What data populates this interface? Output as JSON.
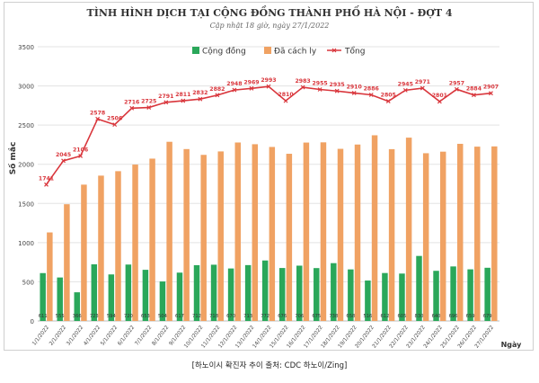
{
  "header": {
    "title": "TÌNH HÌNH DỊCH TẠI CỘNG ĐỒNG THÀNH PHỐ HÀ NỘI - ĐỢT 4",
    "subtitle": "Cập nhật 18 giờ, ngày  27/1/2022"
  },
  "caption": "[하노이시 확진자 추이 출처: CDC 하노이/Zing]",
  "colors": {
    "community": "#2aa75a",
    "isolated": "#f0a263",
    "total": "#d9363c",
    "grid": "#e3e3e3",
    "axis_text": "#444444"
  },
  "chart_data": {
    "type": "bar",
    "title": "TÌNH HÌNH DỊCH TẠI CỘNG ĐỒNG THÀNH PHỐ HÀ NỘI - ĐỢT 4",
    "xlabel": "Ngày",
    "ylabel": "Số mắc",
    "ylim": [
      0,
      3500
    ],
    "yticks": [
      0,
      500,
      1000,
      1500,
      2000,
      2500,
      3000,
      3500
    ],
    "grid": true,
    "legend": "top-center",
    "categories": [
      "1/1/2022",
      "2/1/2022",
      "3/1/2022",
      "4/1/2022",
      "5/1/2022",
      "6/1/2022",
      "7/1/2022",
      "8/1/2022",
      "9/1/2022",
      "10/1/2022",
      "11/1/2022",
      "12/1/2022",
      "13/1/2022",
      "14/1/2022",
      "15/1/2022",
      "16/1/2022",
      "17/1/2022",
      "18/1/2022",
      "19/1/2022",
      "20/1/2022",
      "21/1/2022",
      "22/1/2022",
      "23/1/2022",
      "24/1/2022",
      "25/1/2022",
      "26/1/2022",
      "27/1/2022"
    ],
    "series": [
      {
        "name": "Cộng đồng",
        "kind": "bar",
        "values": [
          611,
          555,
          366,
          723,
          594,
          720,
          653,
          504,
          617,
          712,
          718,
          670,
          713,
          772,
          676,
          706,
          675,
          738,
          658,
          516,
          612,
          605,
          830,
          640,
          696,
          659,
          679
        ],
        "labels": [
          "611",
          "555",
          "366",
          "723",
          "594",
          "720",
          "653",
          "504",
          "617",
          "712",
          "718",
          "670",
          "713",
          "772",
          "676",
          "706",
          "675",
          "738",
          "658",
          "516",
          "612",
          "605",
          "830",
          "640",
          "696",
          "659",
          "679"
        ]
      },
      {
        "name": "Đã cách ly",
        "kind": "bar",
        "values": [
          1130,
          1490,
          1740,
          1855,
          1912,
          1996,
          2072,
          2287,
          2194,
          2120,
          2164,
          2278,
          2256,
          2221,
          2134,
          2277,
          2280,
          2197,
          2252,
          2370,
          2193,
          2340,
          2141,
          2161,
          2261,
          2225,
          2228
        ]
      },
      {
        "name": "Tổng",
        "kind": "line",
        "values": [
          1741,
          2045,
          2106,
          2578,
          2506,
          2716,
          2725,
          2791,
          2811,
          2832,
          2882,
          2948,
          2969,
          2993,
          2810,
          2983,
          2955,
          2935,
          2910,
          2886,
          2805,
          2945,
          2971,
          2801,
          2957,
          2884,
          2907
        ],
        "labels": [
          "1741",
          "2045",
          "2106",
          "2578",
          "2506",
          "2716",
          "2725",
          "2791",
          "2811",
          "2832",
          "2882",
          "2948",
          "2969",
          "2993",
          "2810",
          "2983",
          "2955",
          "2935",
          "2910",
          "2886",
          "2805",
          "2945",
          "2971",
          "2801",
          "2957",
          "2884",
          "2907"
        ]
      }
    ]
  }
}
